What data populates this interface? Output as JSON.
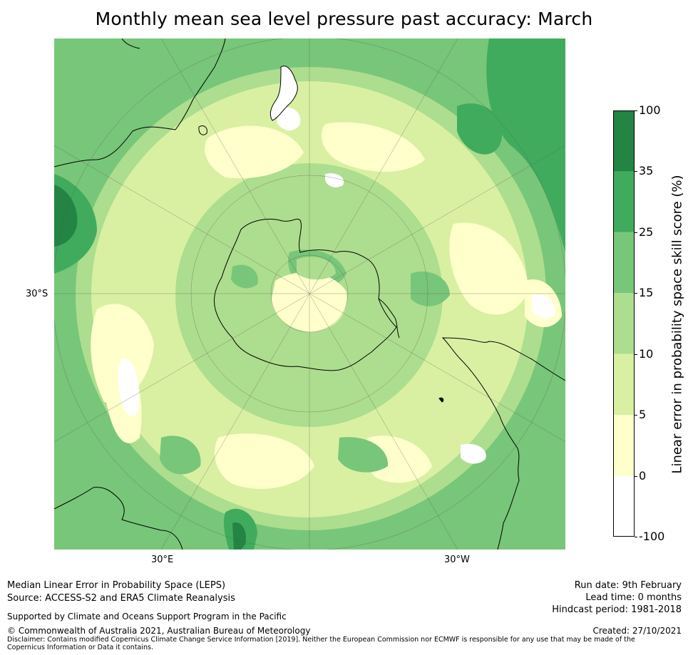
{
  "title": "Monthly mean sea level pressure past accuracy: March",
  "map": {
    "projection": "south-polar-stereographic",
    "lat_labels": [
      "30°S"
    ],
    "lon_labels": [
      "30°E",
      "30°W"
    ]
  },
  "colorbar": {
    "label": "Linear error in probability space skill score (%)",
    "ticks": [
      "100",
      "35",
      "25",
      "15",
      "10",
      "5",
      "0",
      "-100"
    ],
    "colors": [
      "#238443",
      "#41ab5d",
      "#78c679",
      "#addd8e",
      "#d9f0a3",
      "#ffffcc",
      "#ffffff"
    ]
  },
  "footer": {
    "left": {
      "line1": "Median Linear Error in Probability Space (LEPS)",
      "line2": "Source: ACCESS-S2 and ERA5 Climate Reanalysis",
      "support": "Supported by Climate and Oceans Support Program in the Pacific",
      "copyright": "© Commonwealth of Australia 2021, Australian Bureau of Meteorology",
      "disclaimer": "Disclaimer: Contains modified Copernicus Climate Change Service Information [2019]. Neither the European Commission nor ECMWF is responsible for any use that may be made of the Copernicus Information or Data it contains."
    },
    "right": {
      "run_date": "Run date: 9th February",
      "lead_time": "Lead time: 0 months",
      "hindcast": "Hindcast period: 1981-2018",
      "created": "Created: 27/10/2021"
    }
  }
}
